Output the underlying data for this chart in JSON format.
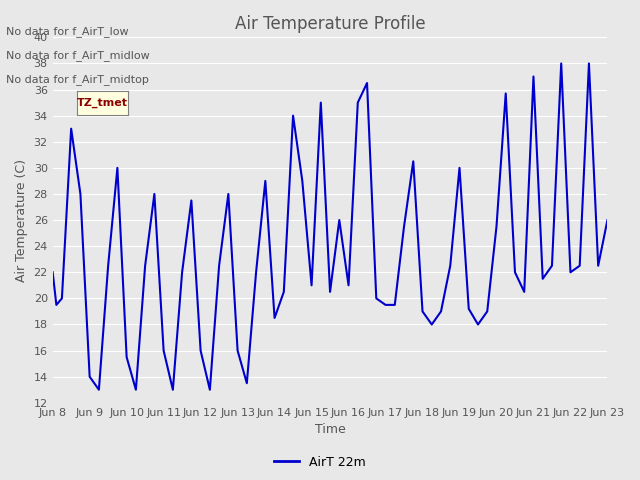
{
  "title": "Air Temperature Profile",
  "xlabel": "Time",
  "ylabel": "Air Temperature (C)",
  "legend_label": "AirT 22m",
  "line_color": "#0000CC",
  "background_color": "#E8E8E8",
  "plot_bg_color": "#E8E8E8",
  "ylim": [
    12,
    40
  ],
  "yticks": [
    12,
    14,
    16,
    18,
    20,
    22,
    24,
    26,
    28,
    30,
    32,
    34,
    36,
    38,
    40
  ],
  "xtick_labels": [
    "Jun 8",
    "Jun 9",
    "Jun 10",
    "Jun 11",
    "Jun 12",
    "Jun 13",
    "Jun 14",
    "Jun 15",
    "Jun 16",
    "Jun 17",
    "Jun 18",
    "Jun 19",
    "Jun 20",
    "Jun 21",
    "Jun 22",
    "Jun 23"
  ],
  "annotations": [
    "No data for f_AirT_low",
    "No data for f_AirT_midlow",
    "No data for f_AirT_midtop"
  ],
  "tz_label": "TZ_tmet",
  "time_values": [
    0,
    0.2,
    0.5,
    1.0,
    1.5,
    2.0,
    2.5,
    3.0,
    3.5,
    4.0,
    4.5,
    5.0,
    5.5,
    6.0,
    6.5,
    7.0,
    7.5,
    8.0,
    8.5,
    9.0,
    9.5,
    10.0,
    10.5,
    11.0,
    11.5,
    12.0,
    12.5,
    13.0,
    13.5,
    14.0,
    14.5,
    15.0,
    15.5,
    16.0,
    16.5,
    17.0,
    17.5,
    18.0,
    18.5,
    19.0,
    19.5,
    20.0,
    20.5,
    21.0,
    21.5,
    22.0,
    22.5,
    23.0,
    23.5,
    24.0,
    24.5,
    25.0,
    25.5,
    26.0,
    26.5,
    27.0,
    27.5,
    28.0,
    28.5,
    29.0,
    29.5,
    30.0
  ],
  "temp_values": [
    22,
    19.5,
    20,
    33,
    28,
    14,
    13,
    22.5,
    30,
    15.5,
    13,
    22.5,
    28,
    16,
    13,
    22,
    27.5,
    16,
    13,
    22.5,
    28,
    16,
    13.5,
    22,
    29,
    18.5,
    20.5,
    34,
    29,
    21,
    35,
    20.5,
    26,
    21,
    35,
    36.5,
    20,
    19.5,
    19.5,
    25.5,
    30.5,
    19,
    18,
    19,
    22.5,
    30,
    19.2,
    18,
    19,
    25.5,
    35.7,
    22,
    20.5,
    37,
    21.5,
    22.5,
    38,
    22,
    22.5,
    38,
    22.5,
    26
  ]
}
